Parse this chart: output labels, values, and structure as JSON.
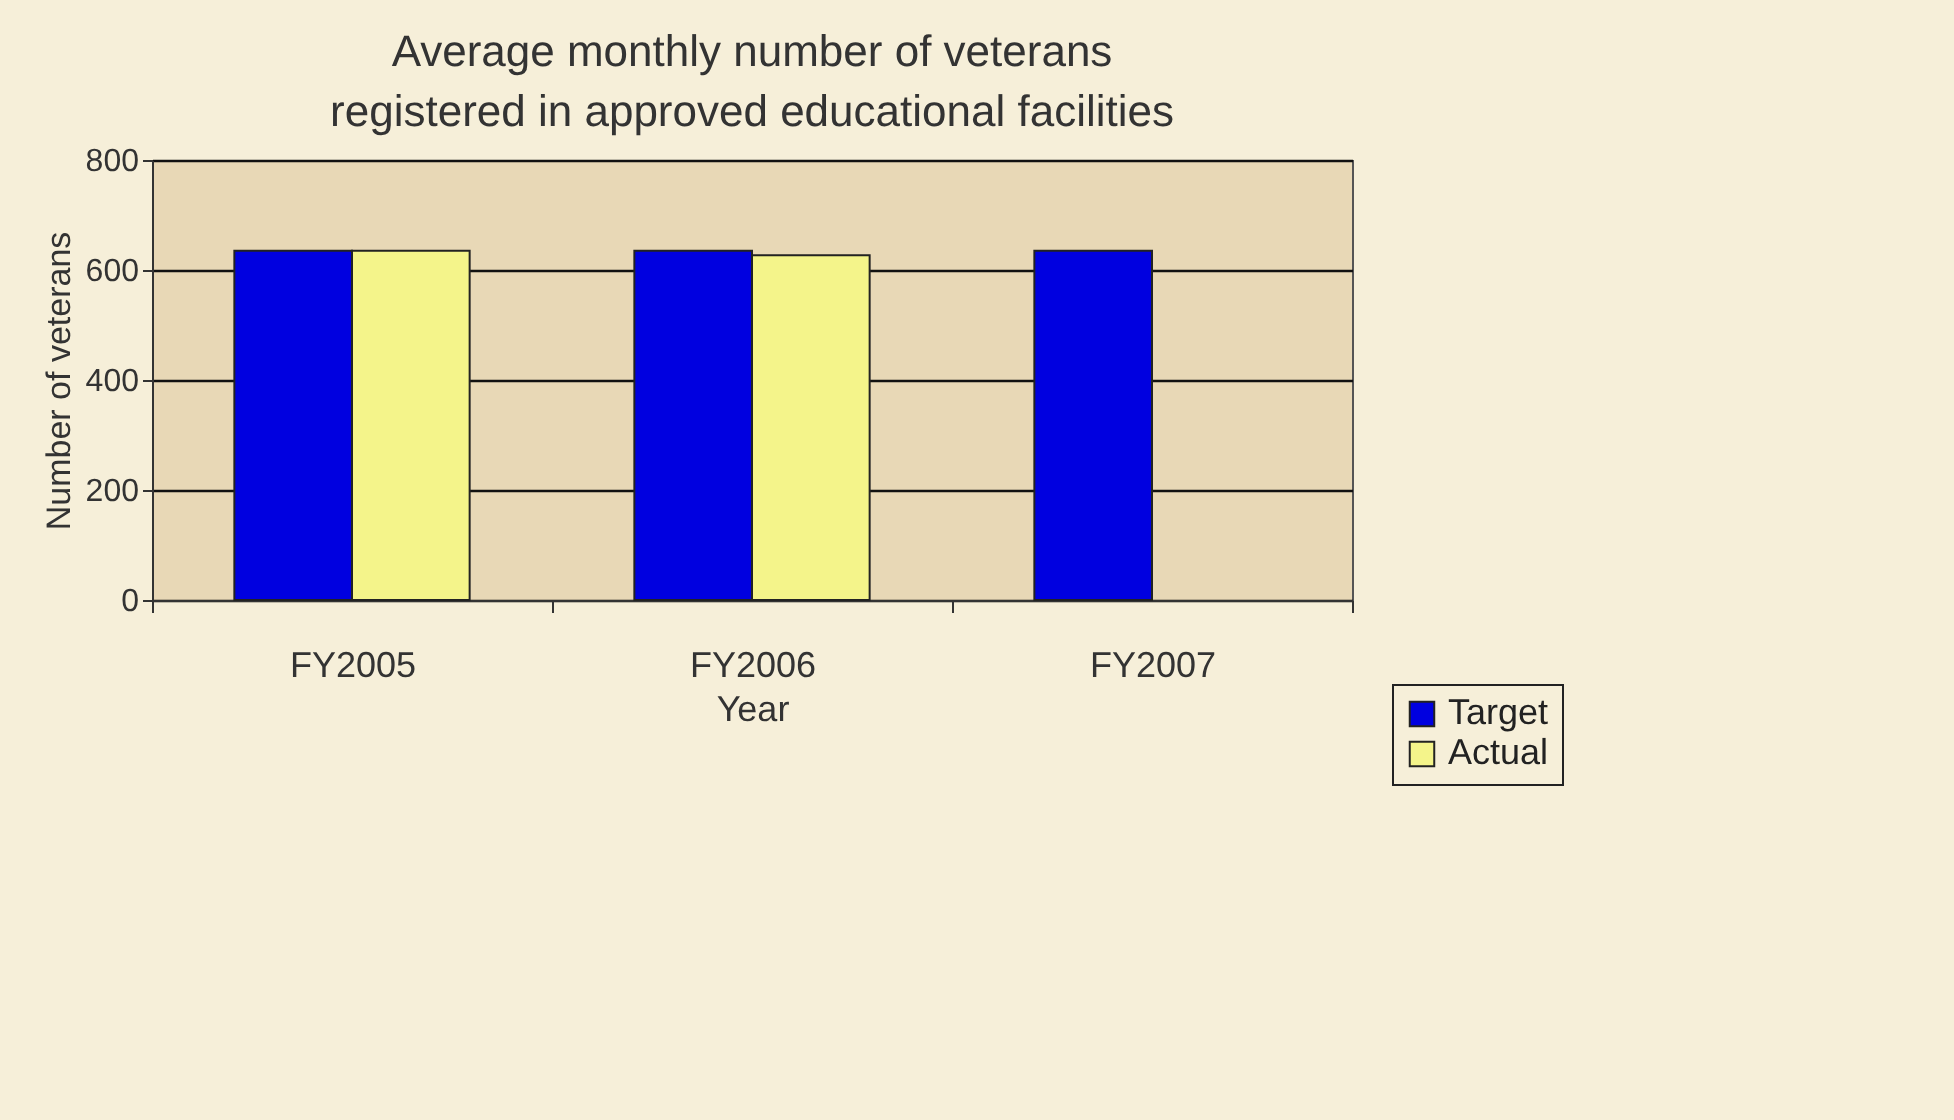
{
  "chart_data": {
    "type": "bar",
    "title": "Average monthly number of veterans registered in approved educational facilities",
    "xlabel": "Year",
    "ylabel": "Number of veterans",
    "categories": [
      "FY2005",
      "FY2006",
      "FY2007"
    ],
    "series": [
      {
        "name": "Target",
        "color": "#0000e0",
        "values": [
          635,
          635,
          635
        ]
      },
      {
        "name": "Actual",
        "color": "#f4f48a",
        "values": [
          635,
          627,
          null
        ]
      }
    ],
    "ylim": [
      0,
      800
    ],
    "yticks": [
      0,
      200,
      400,
      600,
      800
    ],
    "grid": "y",
    "legend": "bottom right"
  }
}
